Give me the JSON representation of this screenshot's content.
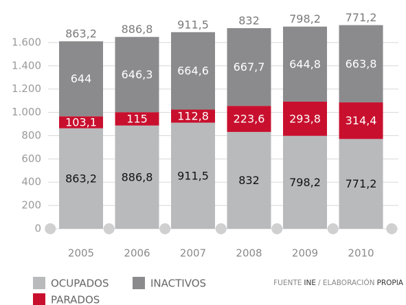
{
  "chart_data": {
    "type": "stacked_bar",
    "categories": [
      "2005",
      "2006",
      "2007",
      "2008",
      "2009",
      "2010"
    ],
    "series": [
      {
        "name": "OCUPADOS",
        "color": "#b9babc",
        "values": [
          863.2,
          886.8,
          911.5,
          832,
          798.2,
          771.2
        ],
        "value_labels": [
          "863,2",
          "886,8",
          "911,5",
          "832",
          "798,2",
          "771,2"
        ]
      },
      {
        "name": "PARADOS",
        "color": "#c8102e",
        "values": [
          103.1,
          115,
          112.8,
          223.6,
          293.8,
          314.4
        ],
        "value_labels": [
          "103,1",
          "115",
          "112,8",
          "223,6",
          "293,8",
          "314,4"
        ]
      },
      {
        "name": "INACTIVOS",
        "color": "#8b8b8d",
        "values": [
          644,
          646.3,
          664.6,
          667.7,
          644.8,
          663.8
        ],
        "value_labels": [
          "644",
          "646,3",
          "664,6",
          "667,7",
          "644,8",
          "663,8"
        ]
      }
    ],
    "ylim": [
      0,
      1800
    ],
    "yticks": [
      0,
      200,
      400,
      600,
      800,
      {
        "value": 1000,
        "label": "1.000"
      },
      {
        "value": 1200,
        "label": "1.200"
      },
      {
        "value": 1400,
        "label": "1.400"
      },
      {
        "value": 1600,
        "label": "1.600"
      }
    ],
    "grid": true,
    "source": [
      "FUENTE",
      "INE",
      "/ ELABORACIÓN",
      "PROPIA"
    ]
  }
}
